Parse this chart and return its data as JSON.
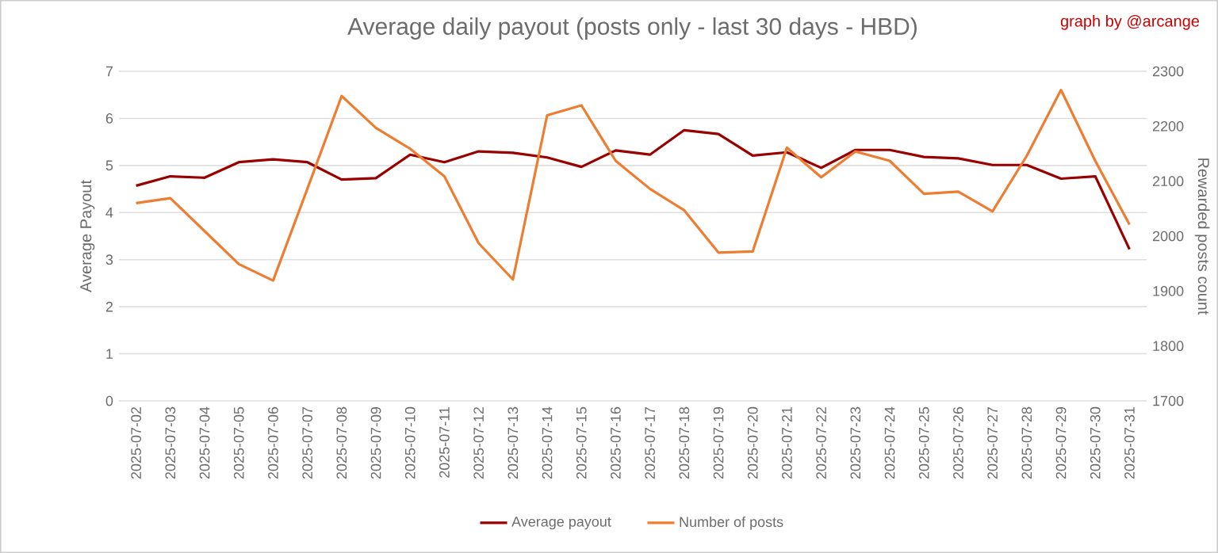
{
  "chart_data": {
    "type": "line",
    "title": "Average daily payout (posts only - last 30 days - HBD)",
    "ylabel": "Average Payout",
    "y2label": "Rewarded posts count",
    "annotations": [
      "graph by @arcange"
    ],
    "categories": [
      "2025-07-02",
      "2025-07-03",
      "2025-07-04",
      "2025-07-05",
      "2025-07-06",
      "2025-07-07",
      "2025-07-08",
      "2025-07-09",
      "2025-07-10",
      "2025-07-11",
      "2025-07-12",
      "2025-07-13",
      "2025-07-14",
      "2025-07-15",
      "2025-07-16",
      "2025-07-17",
      "2025-07-18",
      "2025-07-19",
      "2025-07-20",
      "2025-07-21",
      "2025-07-22",
      "2025-07-23",
      "2025-07-24",
      "2025-07-25",
      "2025-07-26",
      "2025-07-27",
      "2025-07-28",
      "2025-07-29",
      "2025-07-30",
      "2025-07-31"
    ],
    "series": [
      {
        "name": "Average payout",
        "color": "#990000",
        "values": [
          4.57,
          4.77,
          4.74,
          5.07,
          5.13,
          5.07,
          4.7,
          4.73,
          5.23,
          5.07,
          5.3,
          5.27,
          5.17,
          4.97,
          5.32,
          5.23,
          5.75,
          5.67,
          5.21,
          5.28,
          4.95,
          5.33,
          5.33,
          5.18,
          5.15,
          5.01,
          5.01,
          4.72,
          4.77,
          3.22
        ]
      },
      {
        "name": "Number of posts",
        "color": "#ed7d31",
        "axis": "y2",
        "values": [
          2060,
          2069,
          2009,
          1949,
          1919,
          2086,
          2255,
          2197,
          2159,
          2109,
          1987,
          1921,
          2220,
          2238,
          2137,
          2086,
          2047,
          1970,
          1972,
          2161,
          2107,
          2154,
          2137,
          2077,
          2081,
          2045,
          2146,
          2266,
          2137,
          2021
        ]
      }
    ],
    "ylim": [
      0,
      7
    ],
    "yticks": [
      0,
      1,
      2,
      3,
      4,
      5,
      6,
      7
    ],
    "y2lim": [
      1700,
      2300
    ],
    "y2ticks": [
      1700,
      1800,
      1900,
      2000,
      2100,
      2200,
      2300
    ],
    "grid": "y",
    "legend": "bottom"
  }
}
